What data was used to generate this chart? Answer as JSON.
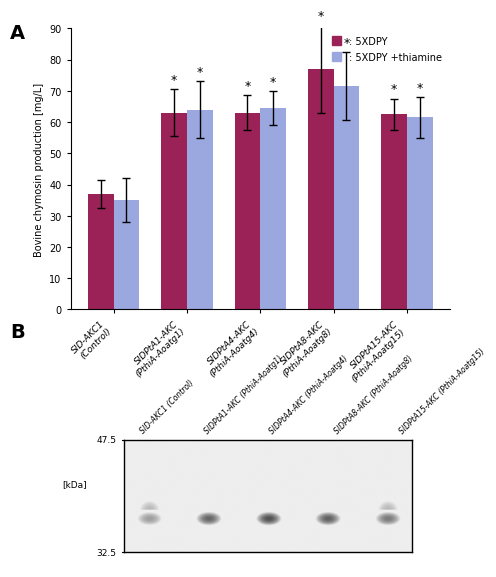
{
  "panel_A": {
    "categories": [
      "SID-AKC1\n(Control)",
      "SIDPtA1-AKC\n(PthiA-Aoatg1)",
      "SIDPtA4-AKC\n(PthiA-Aoatg4)",
      "SIDPtA8-AKC\n(PthiA-Aoatg8)",
      "SIDPtA15-AKC\n(PthiA-Aoatg15)"
    ],
    "values_5XDPY": [
      37.0,
      63.0,
      63.0,
      77.0,
      62.5
    ],
    "values_5XDPY_thiamine": [
      35.0,
      64.0,
      64.5,
      71.5,
      61.5
    ],
    "errors_5XDPY": [
      4.5,
      7.5,
      5.5,
      14.0,
      5.0
    ],
    "errors_5XDPY_thiamine": [
      7.0,
      9.0,
      5.5,
      11.0,
      6.5
    ],
    "color_5XDPY": "#9B2257",
    "color_5XDPY_thiamine": "#9BA8E0",
    "ylabel": "Bovine chymosin production [mg/L]",
    "ylim": [
      0,
      90
    ],
    "yticks": [
      0,
      10,
      20,
      30,
      40,
      50,
      60,
      70,
      80,
      90
    ],
    "legend_5XDPY": ": 5XDPY",
    "legend_5XDPY_thiamine": ": 5XDPY +thiamine",
    "significance_5XDPY": [
      false,
      true,
      true,
      true,
      true
    ],
    "significance_thiamine": [
      false,
      true,
      true,
      true,
      true
    ]
  },
  "panel_B": {
    "kda_labels": [
      "47.5",
      "32.5"
    ],
    "ylabel": "[kDa]",
    "lane_labels": [
      "SID-AKC1 (Control)",
      "SIDPtA1-AKC (PthiA-Aoatg1)",
      "SIDPtA4-AKC (PthiA-Aoatg4)",
      "SIDPtA8-AKC (PthiA-Aoatg8)",
      "SIDPtA15-AKC (PthiA-Aoatg15)"
    ]
  },
  "figure_label_A": "A",
  "figure_label_B": "B",
  "background_color": "#ffffff"
}
